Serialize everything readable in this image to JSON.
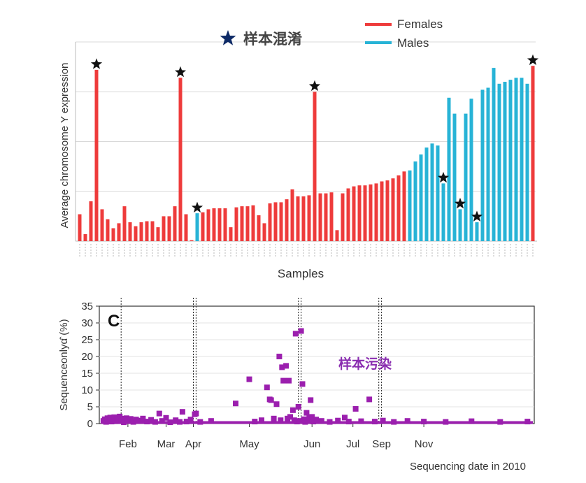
{
  "colors": {
    "female": "#ee3b3b",
    "male": "#27b3d6",
    "star": "#111111",
    "pooled_star": "#0d2a66",
    "contam_points": "#9b1fae",
    "contam_label": "#8a2db0",
    "grid": "#d9d9d9",
    "axis": "#333333"
  },
  "chart_data": [
    {
      "type": "bar",
      "title": "",
      "xlabel": "Samples",
      "ylabel": "Average chromosome Y expression",
      "annotation": "样本混淆",
      "grid": true,
      "legend_position": "top-right",
      "legend": [
        {
          "name": "Females",
          "color_key": "female"
        },
        {
          "name": "Males",
          "color_key": "male"
        }
      ],
      "ylim": [
        0,
        100
      ],
      "bars": [
        {
          "value": 13.5,
          "sex": "F",
          "star": false
        },
        {
          "value": 3.5,
          "sex": "F",
          "star": false
        },
        {
          "value": 20,
          "sex": "F",
          "star": false
        },
        {
          "value": 86,
          "sex": "F",
          "star": true
        },
        {
          "value": 16,
          "sex": "F",
          "star": false
        },
        {
          "value": 11,
          "sex": "F",
          "star": false
        },
        {
          "value": 6.5,
          "sex": "F",
          "star": false
        },
        {
          "value": 9,
          "sex": "F",
          "star": false
        },
        {
          "value": 17.5,
          "sex": "F",
          "star": false
        },
        {
          "value": 9.5,
          "sex": "F",
          "star": false
        },
        {
          "value": 7.5,
          "sex": "F",
          "star": false
        },
        {
          "value": 9.5,
          "sex": "F",
          "star": false
        },
        {
          "value": 10,
          "sex": "F",
          "star": false
        },
        {
          "value": 10,
          "sex": "F",
          "star": false
        },
        {
          "value": 7,
          "sex": "F",
          "star": false
        },
        {
          "value": 12.5,
          "sex": "F",
          "star": false
        },
        {
          "value": 12.5,
          "sex": "F",
          "star": false
        },
        {
          "value": 17.5,
          "sex": "F",
          "star": false
        },
        {
          "value": 82,
          "sex": "F",
          "star": true
        },
        {
          "value": 13.5,
          "sex": "F",
          "star": false
        },
        {
          "value": 0.5,
          "sex": "F",
          "star": false
        },
        {
          "value": 14,
          "sex": "M",
          "star": true
        },
        {
          "value": 14.5,
          "sex": "F",
          "star": false
        },
        {
          "value": 16,
          "sex": "F",
          "star": false
        },
        {
          "value": 16.5,
          "sex": "F",
          "star": false
        },
        {
          "value": 16.5,
          "sex": "F",
          "star": false
        },
        {
          "value": 16.5,
          "sex": "F",
          "star": false
        },
        {
          "value": 7,
          "sex": "F",
          "star": false
        },
        {
          "value": 17,
          "sex": "F",
          "star": false
        },
        {
          "value": 17.5,
          "sex": "F",
          "star": false
        },
        {
          "value": 17.5,
          "sex": "F",
          "star": false
        },
        {
          "value": 18,
          "sex": "F",
          "star": false
        },
        {
          "value": 13,
          "sex": "F",
          "star": false
        },
        {
          "value": 9,
          "sex": "F",
          "star": false
        },
        {
          "value": 19,
          "sex": "F",
          "star": false
        },
        {
          "value": 19.5,
          "sex": "F",
          "star": false
        },
        {
          "value": 19.5,
          "sex": "F",
          "star": false
        },
        {
          "value": 21,
          "sex": "F",
          "star": false
        },
        {
          "value": 26,
          "sex": "F",
          "star": false
        },
        {
          "value": 22.5,
          "sex": "F",
          "star": false
        },
        {
          "value": 22.5,
          "sex": "F",
          "star": false
        },
        {
          "value": 23,
          "sex": "F",
          "star": false
        },
        {
          "value": 75,
          "sex": "F",
          "star": true
        },
        {
          "value": 24,
          "sex": "F",
          "star": false
        },
        {
          "value": 24,
          "sex": "F",
          "star": false
        },
        {
          "value": 24.5,
          "sex": "F",
          "star": false
        },
        {
          "value": 5.5,
          "sex": "F",
          "star": false
        },
        {
          "value": 24,
          "sex": "F",
          "star": false
        },
        {
          "value": 26.5,
          "sex": "F",
          "star": false
        },
        {
          "value": 27.5,
          "sex": "F",
          "star": false
        },
        {
          "value": 28,
          "sex": "F",
          "star": false
        },
        {
          "value": 28,
          "sex": "F",
          "star": false
        },
        {
          "value": 28.5,
          "sex": "F",
          "star": false
        },
        {
          "value": 29,
          "sex": "F",
          "star": false
        },
        {
          "value": 30,
          "sex": "F",
          "star": false
        },
        {
          "value": 30.5,
          "sex": "F",
          "star": false
        },
        {
          "value": 31.5,
          "sex": "F",
          "star": false
        },
        {
          "value": 33,
          "sex": "F",
          "star": false
        },
        {
          "value": 35,
          "sex": "F",
          "star": false
        },
        {
          "value": 35.5,
          "sex": "M",
          "star": false
        },
        {
          "value": 40,
          "sex": "M",
          "star": false
        },
        {
          "value": 43.5,
          "sex": "M",
          "star": false
        },
        {
          "value": 47,
          "sex": "M",
          "star": false
        },
        {
          "value": 49,
          "sex": "M",
          "star": false
        },
        {
          "value": 48,
          "sex": "M",
          "star": false
        },
        {
          "value": 29,
          "sex": "M",
          "star": true
        },
        {
          "value": 72,
          "sex": "M",
          "star": false
        },
        {
          "value": 64,
          "sex": "M",
          "star": false
        },
        {
          "value": 16,
          "sex": "M",
          "star": true
        },
        {
          "value": 64,
          "sex": "M",
          "star": false
        },
        {
          "value": 71.5,
          "sex": "M",
          "star": false
        },
        {
          "value": 9.5,
          "sex": "M",
          "star": true
        },
        {
          "value": 76,
          "sex": "M",
          "star": false
        },
        {
          "value": 77,
          "sex": "M",
          "star": false
        },
        {
          "value": 87,
          "sex": "M",
          "star": false
        },
        {
          "value": 79,
          "sex": "M",
          "star": false
        },
        {
          "value": 80,
          "sex": "M",
          "star": false
        },
        {
          "value": 81,
          "sex": "M",
          "star": false
        },
        {
          "value": 82,
          "sex": "M",
          "star": false
        },
        {
          "value": 82,
          "sex": "M",
          "star": false
        },
        {
          "value": 79,
          "sex": "M",
          "star": false
        },
        {
          "value": 88,
          "sex": "F",
          "star": true
        }
      ]
    },
    {
      "type": "scatter",
      "panel_label": "C",
      "xlabel": "Sequencing date in 2010",
      "ylabel": "Sequenceonlyα̂ (%)",
      "annotation": "样本污染",
      "grid": true,
      "ylim": [
        0,
        35
      ],
      "xlim": [
        "2010-01-20",
        "2010-12-05"
      ],
      "yticks": [
        0,
        5,
        10,
        15,
        20,
        25,
        30,
        35
      ],
      "xticks": [
        {
          "label": "Feb",
          "date": "2010-02-10"
        },
        {
          "label": "Mar",
          "date": "2010-03-10"
        },
        {
          "label": "Apr",
          "date": "2010-03-30"
        },
        {
          "label": "May",
          "date": "2010-05-10"
        },
        {
          "label": "Jun",
          "date": "2010-06-25"
        },
        {
          "label": "Jul",
          "date": "2010-07-25"
        },
        {
          "label": "Sep",
          "date": "2010-08-15"
        },
        {
          "label": "Nov",
          "date": "2010-09-15"
        }
      ],
      "vlines": [
        "2010-02-05",
        "2010-03-30",
        "2010-04-01",
        "2010-06-15",
        "2010-06-17",
        "2010-08-13",
        "2010-08-15"
      ],
      "points": [
        {
          "x": "2010-01-23",
          "y": 0.8
        },
        {
          "x": "2010-01-24",
          "y": 1.3
        },
        {
          "x": "2010-01-25",
          "y": 0.5
        },
        {
          "x": "2010-01-26",
          "y": 1.6
        },
        {
          "x": "2010-01-27",
          "y": 0.9
        },
        {
          "x": "2010-01-28",
          "y": 1.8
        },
        {
          "x": "2010-01-29",
          "y": 0.6
        },
        {
          "x": "2010-01-30",
          "y": 1.4
        },
        {
          "x": "2010-01-31",
          "y": 1.9
        },
        {
          "x": "2010-02-01",
          "y": 0.7
        },
        {
          "x": "2010-02-02",
          "y": 1.7
        },
        {
          "x": "2010-02-03",
          "y": 1.2
        },
        {
          "x": "2010-02-04",
          "y": 2.1
        },
        {
          "x": "2010-02-05",
          "y": 0.8
        },
        {
          "x": "2010-02-06",
          "y": 1.5
        },
        {
          "x": "2010-02-07",
          "y": 0.4
        },
        {
          "x": "2010-02-09",
          "y": 1.6
        },
        {
          "x": "2010-02-10",
          "y": 1.0
        },
        {
          "x": "2010-02-12",
          "y": 1.4
        },
        {
          "x": "2010-02-14",
          "y": 0.5
        },
        {
          "x": "2010-02-16",
          "y": 1.2
        },
        {
          "x": "2010-02-18",
          "y": 0.9
        },
        {
          "x": "2010-02-21",
          "y": 1.5
        },
        {
          "x": "2010-02-24",
          "y": 0.6
        },
        {
          "x": "2010-02-27",
          "y": 1.1
        },
        {
          "x": "2010-03-02",
          "y": 0.5
        },
        {
          "x": "2010-03-05",
          "y": 3.0
        },
        {
          "x": "2010-03-07",
          "y": 0.8
        },
        {
          "x": "2010-03-10",
          "y": 1.7
        },
        {
          "x": "2010-03-13",
          "y": 0.4
        },
        {
          "x": "2010-03-17",
          "y": 1.0
        },
        {
          "x": "2010-03-20",
          "y": 0.5
        },
        {
          "x": "2010-03-22",
          "y": 3.5
        },
        {
          "x": "2010-03-25",
          "y": 0.6
        },
        {
          "x": "2010-03-28",
          "y": 1.2
        },
        {
          "x": "2010-03-31",
          "y": 2.8
        },
        {
          "x": "2010-04-01",
          "y": 3.0
        },
        {
          "x": "2010-04-04",
          "y": 0.5
        },
        {
          "x": "2010-04-12",
          "y": 0.8
        },
        {
          "x": "2010-04-30",
          "y": 6.0
        },
        {
          "x": "2010-05-10",
          "y": 13.2
        },
        {
          "x": "2010-05-14",
          "y": 0.6
        },
        {
          "x": "2010-05-19",
          "y": 1.0
        },
        {
          "x": "2010-05-23",
          "y": 10.8
        },
        {
          "x": "2010-05-25",
          "y": 7.2
        },
        {
          "x": "2010-05-26",
          "y": 7.0
        },
        {
          "x": "2010-05-28",
          "y": 1.5
        },
        {
          "x": "2010-05-30",
          "y": 5.8
        },
        {
          "x": "2010-06-01",
          "y": 20.0
        },
        {
          "x": "2010-06-02",
          "y": 1.0
        },
        {
          "x": "2010-06-03",
          "y": 16.8
        },
        {
          "x": "2010-06-04",
          "y": 12.8
        },
        {
          "x": "2010-06-06",
          "y": 17.2
        },
        {
          "x": "2010-06-07",
          "y": 1.5
        },
        {
          "x": "2010-06-08",
          "y": 12.8
        },
        {
          "x": "2010-06-09",
          "y": 2.0
        },
        {
          "x": "2010-06-11",
          "y": 4.0
        },
        {
          "x": "2010-06-12",
          "y": 1.0
        },
        {
          "x": "2010-06-13",
          "y": 26.8
        },
        {
          "x": "2010-06-14",
          "y": 0.6
        },
        {
          "x": "2010-06-15",
          "y": 5.0
        },
        {
          "x": "2010-06-16",
          "y": 0.8
        },
        {
          "x": "2010-06-17",
          "y": 27.6
        },
        {
          "x": "2010-06-18",
          "y": 11.8
        },
        {
          "x": "2010-06-19",
          "y": 1.3
        },
        {
          "x": "2010-06-20",
          "y": 0.5
        },
        {
          "x": "2010-06-21",
          "y": 3.2
        },
        {
          "x": "2010-06-22",
          "y": 1.1
        },
        {
          "x": "2010-06-23",
          "y": 1.8
        },
        {
          "x": "2010-06-24",
          "y": 7.0
        },
        {
          "x": "2010-06-25",
          "y": 2.0
        },
        {
          "x": "2010-06-26",
          "y": 0.6
        },
        {
          "x": "2010-06-28",
          "y": 1.2
        },
        {
          "x": "2010-07-02",
          "y": 0.8
        },
        {
          "x": "2010-07-08",
          "y": 0.5
        },
        {
          "x": "2010-07-14",
          "y": 0.9
        },
        {
          "x": "2010-07-19",
          "y": 1.8
        },
        {
          "x": "2010-07-22",
          "y": 0.6
        },
        {
          "x": "2010-07-27",
          "y": 4.4
        },
        {
          "x": "2010-07-31",
          "y": 0.7
        },
        {
          "x": "2010-08-06",
          "y": 7.2
        },
        {
          "x": "2010-08-10",
          "y": 0.6
        },
        {
          "x": "2010-08-16",
          "y": 0.9
        },
        {
          "x": "2010-08-24",
          "y": 0.5
        },
        {
          "x": "2010-09-03",
          "y": 0.8
        },
        {
          "x": "2010-09-15",
          "y": 0.6
        },
        {
          "x": "2010-10-01",
          "y": 0.5
        },
        {
          "x": "2010-10-20",
          "y": 0.7
        },
        {
          "x": "2010-11-10",
          "y": 0.5
        },
        {
          "x": "2010-11-30",
          "y": 0.6
        }
      ]
    }
  ]
}
